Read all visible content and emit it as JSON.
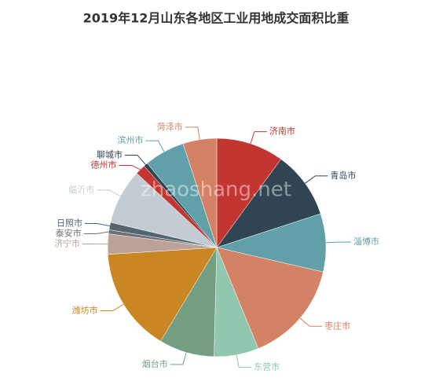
{
  "chart_data": {
    "type": "pie",
    "title": "2019年12月山东各地区工业用地成交面积比重",
    "watermark": "zhaoshang.net",
    "categories": [
      "济南市",
      "青岛市",
      "淄博市",
      "枣庄市",
      "东营市",
      "烟台市",
      "潍坊市",
      "济宁市",
      "泰安市",
      "日照市",
      "临沂市",
      "德州市",
      "聊城市",
      "滨州市",
      "菏泽市"
    ],
    "values": [
      10,
      10,
      8.6,
      15.2,
      6.6,
      8.2,
      15.4,
      3,
      0.6,
      1.1,
      8.2,
      1.5,
      0.6,
      6,
      5
    ],
    "colors": [
      "#c23531",
      "#2f4554",
      "#61a0a8",
      "#d48265",
      "#91c7ae",
      "#749f83",
      "#ca8622",
      "#bda29a",
      "#6e7074",
      "#546570",
      "#c4ccd3",
      "#c23531",
      "#2f4554",
      "#61a0a8",
      "#d48265"
    ]
  }
}
